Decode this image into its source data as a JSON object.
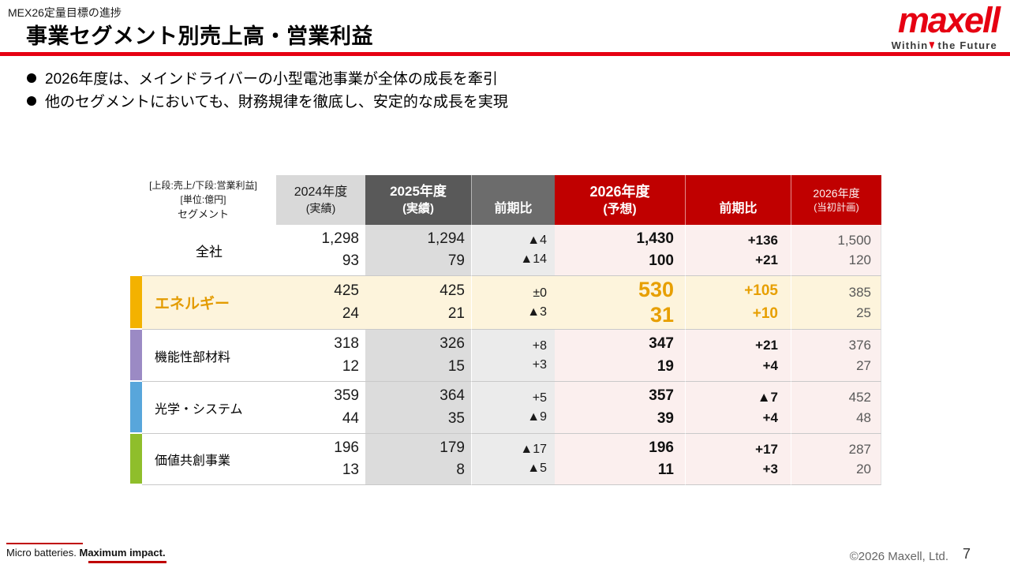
{
  "header": {
    "eyebrow": "MEX26定量目標の進捗",
    "title": "事業セグメント別売上高・営業利益",
    "logo": {
      "brand": "maxell",
      "tagline_left": "Within",
      "tagline_right": "the Future"
    }
  },
  "bullets": [
    "2026年度は、メインドライバーの小型電池事業が全体の成長を牽引",
    "他のセグメントにおいても、財務規律を徹底し、安定的な成長を実現"
  ],
  "table": {
    "corner": {
      "line1": "[上段:売上/下段:営業利益]",
      "line2": "[単位:億円]",
      "line3": "セグメント"
    },
    "headers": {
      "fy2024": {
        "label": "2024年度",
        "sub": "(実績)"
      },
      "fy2025": {
        "label": "2025年度",
        "sub": "(実績)"
      },
      "yoy2025": {
        "label": "前期比"
      },
      "fy2026": {
        "label": "2026年度",
        "sub": "(予想)"
      },
      "yoy2026": {
        "label": "前期比"
      },
      "plan2026": {
        "label": "2026年度",
        "sub": "(当初計画)"
      }
    },
    "rows": [
      {
        "name": "全社",
        "vals": [
          [
            "1,298",
            "93"
          ],
          [
            "1,294",
            "79"
          ],
          [
            "▲4",
            "▲14"
          ],
          [
            "1,430",
            "100"
          ],
          [
            "+136",
            "+21"
          ],
          [
            "1,500",
            "120"
          ]
        ]
      },
      {
        "name": "エネルギー",
        "vals": [
          [
            "425",
            "24"
          ],
          [
            "425",
            "21"
          ],
          [
            "±0",
            "▲3"
          ],
          [
            "530",
            "31"
          ],
          [
            "+105",
            "+10"
          ],
          [
            "385",
            "25"
          ]
        ]
      },
      {
        "name": "機能性部材料",
        "vals": [
          [
            "318",
            "12"
          ],
          [
            "326",
            "15"
          ],
          [
            "+8",
            "+3"
          ],
          [
            "347",
            "19"
          ],
          [
            "+21",
            "+4"
          ],
          [
            "376",
            "27"
          ]
        ]
      },
      {
        "name": "光学・システム",
        "vals": [
          [
            "359",
            "44"
          ],
          [
            "364",
            "35"
          ],
          [
            "+5",
            "▲9"
          ],
          [
            "357",
            "39"
          ],
          [
            "▲7",
            "+4"
          ],
          [
            "452",
            "48"
          ]
        ]
      },
      {
        "name": "価値共創事業",
        "vals": [
          [
            "196",
            "13"
          ],
          [
            "179",
            "8"
          ],
          [
            "▲17",
            "▲5"
          ],
          [
            "196",
            "11"
          ],
          [
            "+17",
            "+3"
          ],
          [
            "287",
            "20"
          ]
        ]
      }
    ],
    "segment_colors": {
      "energy": "#F3B200",
      "functional_materials": "#9B8AC4",
      "optics_systems": "#58A6DB",
      "value_cocreation": "#8FBE2B"
    }
  },
  "footer": {
    "slogan_normal": "Micro batteries.",
    "slogan_bold": "Maximum impact.",
    "copyright": "©2026 Maxell, Ltd.",
    "page_number": "7"
  },
  "colors": {
    "brand_red": "#E60012",
    "table_header_red": "#C00000",
    "table_header_gray": "#595959",
    "forecast_bg": "#FBEFEE",
    "highlight_row_bg": "#FDF4DC",
    "highlight_text": "#E79F00"
  }
}
